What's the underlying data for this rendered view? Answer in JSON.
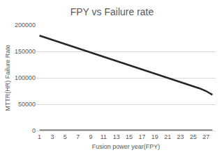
{
  "chart_data": {
    "type": "line",
    "title": "FPY vs Failure rate",
    "x_label": "Fusion power year(FPY)",
    "y_label": "MTTR(HR) Failure Rate",
    "categories": [
      1,
      null,
      3,
      null,
      5,
      null,
      7,
      null,
      9,
      null,
      11,
      null,
      13,
      null,
      15,
      null,
      17,
      null,
      19,
      null,
      21,
      null,
      23,
      null,
      25,
      null,
      27,
      null
    ],
    "series": [
      {
        "color": "#262626",
        "values": [
          180000,
          176000,
          173000,
          168000,
          165000,
          160000,
          156000,
          152000,
          148000,
          144000,
          140000,
          136000,
          132000,
          128000,
          124000,
          120000,
          116000,
          112000,
          108000,
          104000,
          100000,
          96000,
          92000,
          88000,
          84000,
          80000,
          75000,
          68000
        ]
      },
      {
        "color": "#7f7f7f",
        "values": [
          500,
          500,
          500,
          500,
          500,
          500,
          500,
          500,
          500,
          500,
          500,
          500,
          500,
          500,
          500,
          500,
          500,
          500,
          500,
          500,
          500,
          500,
          500,
          500,
          500,
          500,
          500,
          500
        ]
      }
    ],
    "ylim": [
      0,
      200000
    ],
    "yticks": [
      0,
      50000,
      100000,
      150000,
      200000
    ],
    "grid": true
  }
}
